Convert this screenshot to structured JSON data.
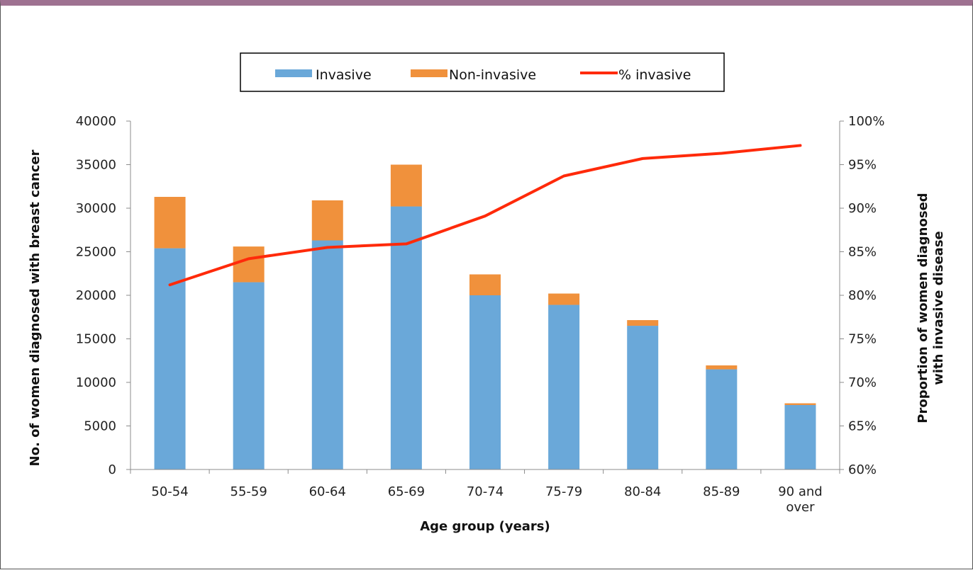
{
  "chart_data": {
    "type": "bar",
    "stacked": true,
    "categories": [
      "50-54",
      "55-59",
      "60-64",
      "65-69",
      "70-74",
      "75-79",
      "80-84",
      "85-89",
      "90 and over"
    ],
    "category_lines": [
      [
        "50-54"
      ],
      [
        "55-59"
      ],
      [
        "60-64"
      ],
      [
        "65-69"
      ],
      [
        "70-74"
      ],
      [
        "75-79"
      ],
      [
        "80-84"
      ],
      [
        "85-89"
      ],
      [
        "90 and",
        "over"
      ]
    ],
    "series": [
      {
        "name": "Invasive",
        "type": "bar",
        "axis": "left",
        "color": "#6aa8d9",
        "values": [
          25400,
          21500,
          26300,
          30200,
          20000,
          18900,
          16500,
          11500,
          7400
        ]
      },
      {
        "name": "Non-invasive",
        "type": "bar",
        "axis": "left",
        "color": "#f0913c",
        "values": [
          5900,
          4100,
          4600,
          4800,
          2400,
          1300,
          650,
          450,
          200
        ]
      },
      {
        "name": "% invasive",
        "type": "line",
        "axis": "right",
        "color": "#ff2a0a",
        "values": [
          81.2,
          84.2,
          85.5,
          85.9,
          89.1,
          93.7,
          95.7,
          96.3,
          97.2
        ]
      }
    ],
    "xlabel": "Age group (years)",
    "ylabel": "No. of women diagnosed with breast cancer",
    "y2label_lines": [
      "Proportion of women diagnosed",
      "with invasive disease"
    ],
    "ylim": [
      0,
      40000
    ],
    "yticks": [
      "0",
      "5000",
      "10000",
      "15000",
      "20000",
      "25000",
      "30000",
      "35000",
      "40000"
    ],
    "y2lim": [
      60,
      100
    ],
    "y2ticks": [
      "60%",
      "65%",
      "70%",
      "75%",
      "80%",
      "85%",
      "90%",
      "95%",
      "100%"
    ],
    "grid": false,
    "legend_position": "top-center"
  }
}
